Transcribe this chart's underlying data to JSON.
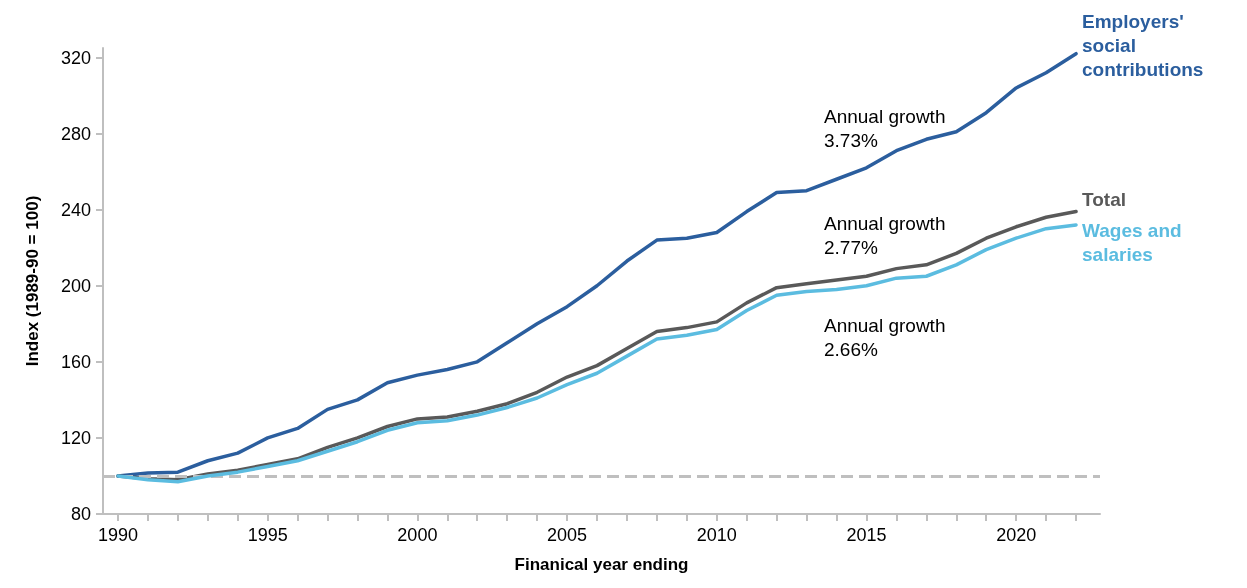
{
  "chart_data": {
    "type": "line",
    "xlabel": "Finanical year ending",
    "ylabel": "Index (1989-90 = 100)",
    "x": [
      1990,
      1991,
      1992,
      1993,
      1994,
      1995,
      1996,
      1997,
      1998,
      1999,
      2000,
      2001,
      2002,
      2003,
      2004,
      2005,
      2006,
      2007,
      2008,
      2009,
      2010,
      2011,
      2012,
      2013,
      2014,
      2015,
      2016,
      2017,
      2018,
      2019,
      2020,
      2021,
      2022
    ],
    "series": [
      {
        "name": "Employers' social contributions",
        "color": "#2b5e9e",
        "values": [
          100,
          101.5,
          102,
          108,
          112,
          120,
          125,
          135,
          140,
          149,
          153,
          156,
          160,
          170,
          180,
          189,
          200,
          213,
          224,
          225,
          228,
          239,
          249,
          250,
          256,
          262,
          271,
          277,
          281,
          291,
          304,
          312,
          322
        ]
      },
      {
        "name": "Total",
        "color": "#595959",
        "values": [
          100,
          98.5,
          98,
          101,
          103,
          106,
          109,
          115,
          120,
          126,
          130,
          131,
          134,
          138,
          144,
          152,
          158,
          167,
          176,
          178,
          181,
          191,
          199,
          201,
          203,
          205,
          209,
          211,
          217,
          225,
          231,
          236,
          239
        ]
      },
      {
        "name": "Wages and salaries",
        "color": "#5bbce0",
        "values": [
          100,
          98,
          97,
          100,
          102,
          105,
          108,
          113,
          118,
          124,
          128,
          129,
          132,
          136,
          141,
          148,
          154,
          163,
          172,
          174,
          177,
          187,
          195,
          197,
          198,
          200,
          204,
          205,
          211,
          219,
          225,
          230,
          232
        ]
      }
    ],
    "xlim": [
      1989.5,
      2022.8
    ],
    "xticks": [
      1990,
      {
        "value": 1991,
        "label": null
      },
      {
        "value": 1992,
        "label": null
      },
      {
        "value": 1993,
        "label": null
      },
      {
        "value": 1994,
        "label": null
      },
      1995,
      {
        "value": 1996,
        "label": null
      },
      {
        "value": 1997,
        "label": null
      },
      {
        "value": 1998,
        "label": null
      },
      {
        "value": 1999,
        "label": null
      },
      2000,
      {
        "value": 2001,
        "label": null
      },
      {
        "value": 2002,
        "label": null
      },
      {
        "value": 2003,
        "label": null
      },
      {
        "value": 2004,
        "label": null
      },
      2005,
      {
        "value": 2006,
        "label": null
      },
      {
        "value": 2007,
        "label": null
      },
      {
        "value": 2008,
        "label": null
      },
      {
        "value": 2009,
        "label": null
      },
      2010,
      {
        "value": 2011,
        "label": null
      },
      {
        "value": 2012,
        "label": null
      },
      {
        "value": 2013,
        "label": null
      },
      {
        "value": 2014,
        "label": null
      },
      2015,
      {
        "value": 2016,
        "label": null
      },
      {
        "value": 2017,
        "label": null
      },
      {
        "value": 2018,
        "label": null
      },
      {
        "value": 2019,
        "label": null
      },
      2020,
      {
        "value": 2021,
        "label": null
      },
      {
        "value": 2022,
        "label": null
      }
    ],
    "ylim": [
      80,
      325
    ],
    "yticks": [
      80,
      120,
      160,
      200,
      240,
      280,
      320
    ],
    "ref_lines": [
      {
        "axis": "y",
        "value": 100,
        "label": null,
        "color": "#bfbfbf",
        "line_style": "dashed"
      }
    ],
    "annotations": [
      "Annual growth\n3.73%",
      "Annual growth\n2.77%",
      "Annual growth\n2.66%"
    ],
    "grid": false,
    "legend": false,
    "marker": "none",
    "line_style": "solid"
  }
}
